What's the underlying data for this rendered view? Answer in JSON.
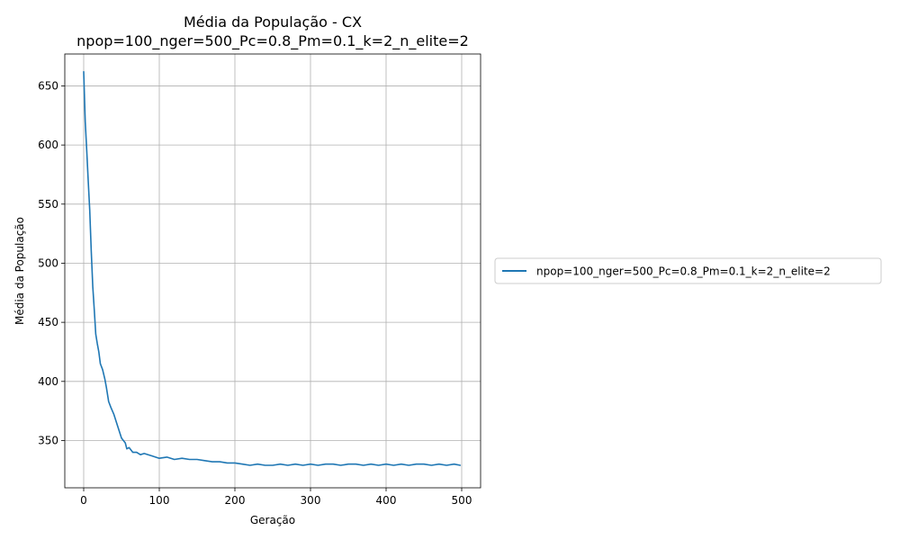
{
  "chart_data": {
    "type": "line",
    "title": "Média da População - CX",
    "subtitle": "npop=100_nger=500_Pc=0.8_Pm=0.1_k=2_n_elite=2",
    "xlabel": "Geração",
    "ylabel": "Média da População",
    "xlim": [
      -25,
      525
    ],
    "ylim": [
      310,
      677
    ],
    "xticks": [
      0,
      100,
      200,
      300,
      400,
      500
    ],
    "yticks": [
      350,
      400,
      450,
      500,
      550,
      600,
      650
    ],
    "xtick_labels": [
      "0",
      "100",
      "200",
      "300",
      "400",
      "500"
    ],
    "ytick_labels": [
      "350",
      "400",
      "450",
      "500",
      "550",
      "600",
      "650"
    ],
    "grid": true,
    "legend_position": "outside-right",
    "series": [
      {
        "name": "npop=100_nger=500_Pc=0.8_Pm=0.1_k=2_n_elite=2",
        "color": "#1f77b4",
        "x": [
          0,
          2,
          4,
          6,
          8,
          10,
          12,
          14,
          16,
          18,
          20,
          22,
          25,
          28,
          30,
          33,
          36,
          40,
          45,
          50,
          55,
          57,
          60,
          65,
          70,
          75,
          80,
          90,
          100,
          110,
          120,
          130,
          140,
          150,
          160,
          170,
          180,
          190,
          200,
          210,
          220,
          230,
          240,
          250,
          260,
          270,
          280,
          290,
          300,
          310,
          320,
          330,
          340,
          350,
          360,
          370,
          380,
          390,
          400,
          410,
          420,
          430,
          440,
          450,
          460,
          470,
          480,
          490,
          498
        ],
        "y": [
          662,
          620,
          595,
          570,
          545,
          510,
          480,
          460,
          440,
          432,
          425,
          415,
          410,
          402,
          395,
          383,
          378,
          372,
          362,
          352,
          348,
          343,
          344,
          340,
          340,
          338,
          339,
          337,
          335,
          336,
          334,
          335,
          334,
          334,
          333,
          332,
          332,
          331,
          331,
          330,
          329,
          330,
          329,
          329,
          330,
          329,
          330,
          329,
          330,
          329,
          330,
          330,
          329,
          330,
          330,
          329,
          330,
          329,
          330,
          329,
          330,
          329,
          330,
          330,
          329,
          330,
          329,
          330,
          329
        ]
      }
    ]
  }
}
